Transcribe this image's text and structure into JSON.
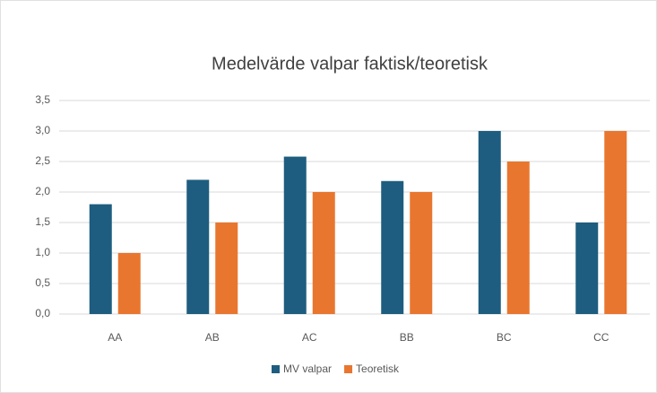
{
  "chart_data": {
    "type": "bar",
    "title": "Medelvärde valpar faktisk/teoretisk",
    "categories": [
      "AA",
      "AB",
      "AC",
      "BB",
      "BC",
      "CC"
    ],
    "series": [
      {
        "name": "MV valpar",
        "color": "#1e5d7f",
        "values": [
          1.8,
          2.2,
          2.58,
          2.18,
          3.0,
          1.5
        ]
      },
      {
        "name": "Teoretisk",
        "color": "#e9762f",
        "values": [
          1.0,
          1.5,
          2.0,
          2.0,
          2.5,
          3.0
        ]
      }
    ],
    "ylim": [
      0,
      3.5
    ],
    "yticks": [
      {
        "value": 0,
        "label": "0,0"
      },
      {
        "value": 0.5,
        "label": "0,5"
      },
      {
        "value": 1,
        "label": "1,0"
      },
      {
        "value": 1.5,
        "label": "1,5"
      },
      {
        "value": 2,
        "label": "2,0"
      },
      {
        "value": 2.5,
        "label": "2,5"
      },
      {
        "value": 3,
        "label": "3,0"
      },
      {
        "value": 3.5,
        "label": "3,5"
      }
    ],
    "grid": true,
    "legend": "bottom"
  }
}
